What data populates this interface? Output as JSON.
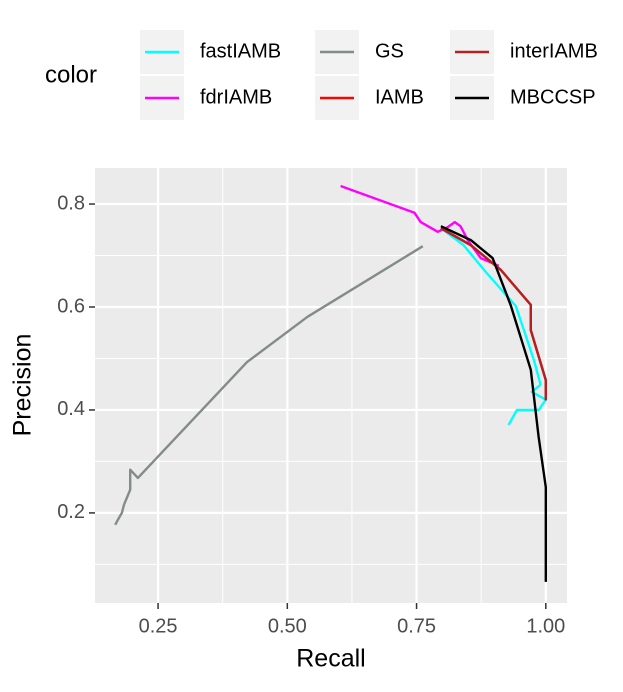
{
  "chart_data": {
    "type": "line",
    "x_label": "Recall",
    "y_label": "Precision",
    "legend_title": "color",
    "xlim": [
      0.128,
      1.041
    ],
    "ylim": [
      0.025,
      0.87
    ],
    "xticks": [
      0.25,
      {
        "value": 0.5,
        "label": "0.50"
      },
      0.75,
      {
        "value": 1.0,
        "label": "1.00"
      }
    ],
    "yticks": [
      0.2,
      0.4,
      0.6,
      0.8
    ],
    "grid": true,
    "legend": "top",
    "series": [
      {
        "name": "fastIAMB",
        "color": "#00ffff",
        "x": [
          0.797,
          0.841,
          0.884,
          0.942,
          0.977,
          0.99,
          0.973,
          1.0,
          0.986,
          0.944,
          0.928
        ],
        "values": [
          0.753,
          0.72,
          0.668,
          0.602,
          0.497,
          0.449,
          0.435,
          0.42,
          0.4,
          0.4,
          0.371
        ]
      },
      {
        "name": "fdrIAMB",
        "color": "#ff00ff",
        "x": [
          0.603,
          0.746,
          0.758,
          0.791,
          0.81,
          0.824,
          0.835,
          0.849,
          0.874,
          0.909
        ],
        "values": [
          0.835,
          0.783,
          0.765,
          0.746,
          0.755,
          0.765,
          0.757,
          0.73,
          0.695,
          0.68
        ]
      },
      {
        "name": "GS",
        "color": "#838b8b",
        "x": [
          0.167,
          0.172,
          0.18,
          0.184,
          0.196,
          0.196,
          0.211,
          0.422,
          0.539,
          0.762
        ],
        "values": [
          0.177,
          0.186,
          0.2,
          0.216,
          0.245,
          0.284,
          0.268,
          0.493,
          0.581,
          0.718
        ]
      },
      {
        "name": "IAMB",
        "color": "#ff0000",
        "x": [
          0.797,
          0.855,
          0.913,
          0.971,
          0.971,
          1.0,
          1.0
        ],
        "values": [
          0.753,
          0.72,
          0.672,
          0.604,
          0.555,
          0.458,
          0.419
        ]
      },
      {
        "name": "interIAMB",
        "color": "#b22222",
        "x": [
          0.797,
          0.855,
          0.913,
          0.971,
          0.971,
          1.0,
          1.0
        ],
        "values": [
          0.753,
          0.72,
          0.672,
          0.604,
          0.555,
          0.458,
          0.419
        ]
      },
      {
        "name": "MBCCSP",
        "color": "#000000",
        "x": [
          0.797,
          0.855,
          0.897,
          0.932,
          0.971,
          0.986,
          1.0,
          1.0
        ],
        "values": [
          0.757,
          0.73,
          0.695,
          0.604,
          0.478,
          0.348,
          0.25,
          0.066
        ]
      }
    ]
  }
}
